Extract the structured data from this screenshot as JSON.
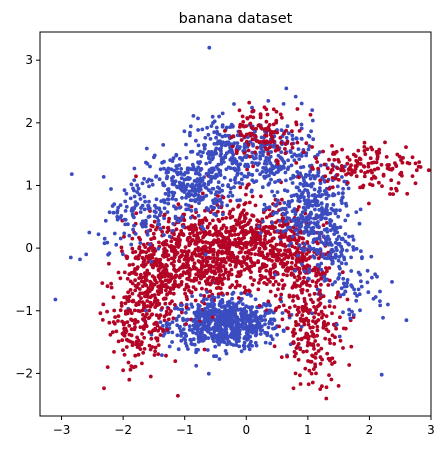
{
  "chart_data": {
    "type": "scatter",
    "title": "banana dataset",
    "xlabel": "",
    "ylabel": "",
    "xlim": [
      -3.35,
      3.0
    ],
    "ylim": [
      -2.68,
      3.45
    ],
    "xticks": [
      -3,
      -2,
      -1,
      0,
      1,
      2,
      3
    ],
    "yticks": [
      -2,
      -1,
      0,
      1,
      2,
      3
    ],
    "grid": false,
    "legend": "none",
    "colors": {
      "class_a": "#3b4cc0",
      "class_b": "#b40426"
    },
    "series": [
      {
        "class": "class_a",
        "color": "#3b4cc0",
        "clusters": [
          {
            "cx": -0.35,
            "cy": -1.2,
            "sx": 0.45,
            "sy": 0.2,
            "n": 700
          },
          {
            "cx": -0.9,
            "cy": 1.0,
            "sx": 0.35,
            "sy": 0.25,
            "n": 250
          },
          {
            "cx": -0.3,
            "cy": 1.55,
            "sx": 0.35,
            "sy": 0.25,
            "n": 200
          },
          {
            "cx": 0.5,
            "cy": 1.4,
            "sx": 0.35,
            "sy": 0.35,
            "n": 200
          },
          {
            "cx": 1.0,
            "cy": 0.7,
            "sx": 0.3,
            "sy": 0.3,
            "n": 250
          },
          {
            "cx": 1.3,
            "cy": 0.1,
            "sx": 0.25,
            "sy": 0.35,
            "n": 150
          },
          {
            "cx": -1.65,
            "cy": 0.55,
            "sx": 0.35,
            "sy": 0.3,
            "n": 120
          },
          {
            "cx": 1.7,
            "cy": -0.6,
            "sx": 0.3,
            "sy": 0.3,
            "n": 60
          }
        ],
        "points": [
          [
            -0.6,
            3.2
          ],
          [
            -3.1,
            -0.82
          ],
          [
            -2.7,
            -0.18
          ],
          [
            -2.55,
            0.25
          ],
          [
            -2.4,
            0.22
          ],
          [
            -2.3,
            0.15
          ],
          [
            2.6,
            -1.15
          ],
          [
            2.2,
            -2.02
          ],
          [
            -1.9,
            0.2
          ],
          [
            0.65,
            2.55
          ],
          [
            -0.2,
            2.3
          ],
          [
            -1.5,
            1.45
          ],
          [
            -2.6,
            -0.1
          ],
          [
            -2.85,
            -0.15
          ],
          [
            2.3,
            -0.9
          ]
        ]
      },
      {
        "class": "class_b",
        "color": "#b40426",
        "clusters": [
          {
            "cx": -0.8,
            "cy": -0.1,
            "sx": 0.5,
            "sy": 0.35,
            "n": 600
          },
          {
            "cx": 0.2,
            "cy": 0.1,
            "sx": 0.45,
            "sy": 0.35,
            "n": 400
          },
          {
            "cx": -1.5,
            "cy": -0.5,
            "sx": 0.3,
            "sy": 0.35,
            "n": 250
          },
          {
            "cx": -1.75,
            "cy": -1.3,
            "sx": 0.25,
            "sy": 0.35,
            "n": 150
          },
          {
            "cx": 0.8,
            "cy": -0.3,
            "sx": 0.3,
            "sy": 0.35,
            "n": 200
          },
          {
            "cx": 1.1,
            "cy": -1.3,
            "sx": 0.25,
            "sy": 0.4,
            "n": 200
          },
          {
            "cx": 0.3,
            "cy": 1.85,
            "sx": 0.3,
            "sy": 0.2,
            "n": 120
          },
          {
            "cx": 1.9,
            "cy": 1.3,
            "sx": 0.45,
            "sy": 0.2,
            "n": 150
          }
        ],
        "points": [
          [
            2.65,
            1.35
          ],
          [
            2.8,
            1.3
          ],
          [
            2.7,
            1.45
          ],
          [
            1.3,
            -2.4
          ],
          [
            1.5,
            -2.2
          ],
          [
            0.8,
            -2.0
          ],
          [
            -2.0,
            -1.95
          ],
          [
            -1.55,
            -2.05
          ],
          [
            -2.25,
            -1.9
          ],
          [
            2.7,
            1.15
          ],
          [
            1.2,
            -2.25
          ],
          [
            -1.9,
            -2.1
          ]
        ]
      }
    ]
  }
}
